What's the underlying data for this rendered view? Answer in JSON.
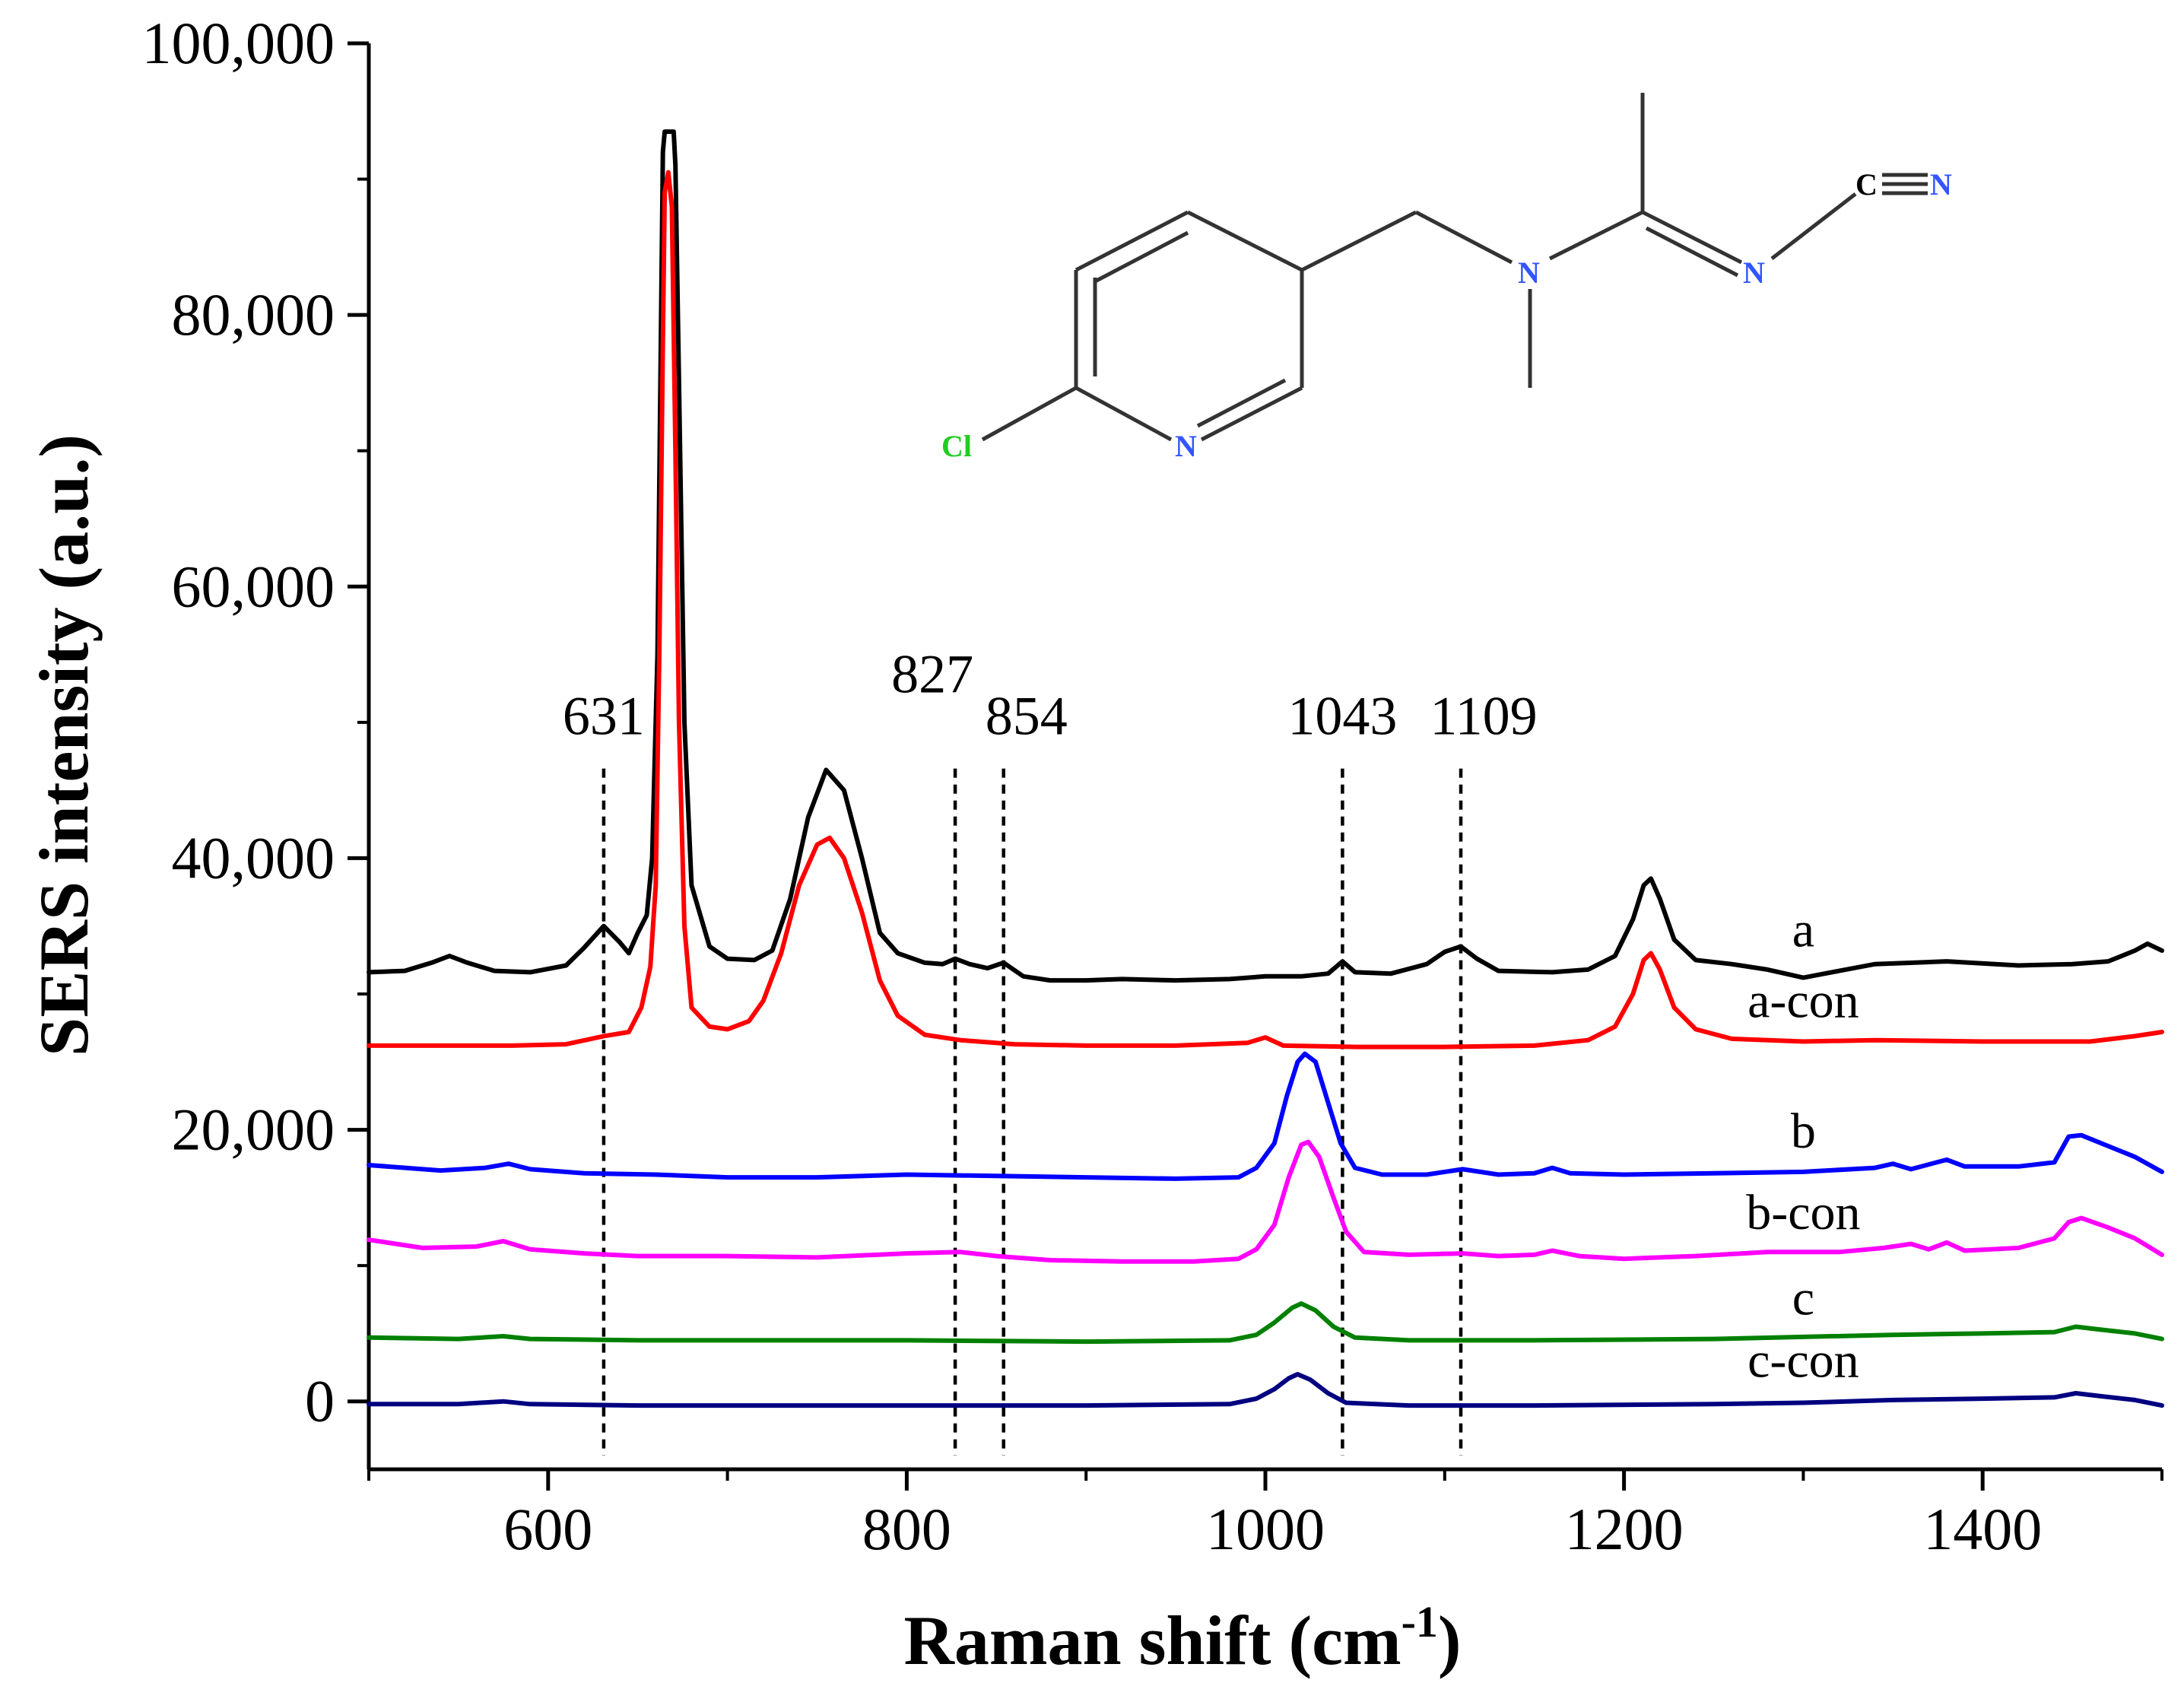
{
  "chart_data": {
    "type": "line",
    "title": "",
    "xlabel": "Raman shift (cm",
    "xlabel_sup": "-1",
    "xlabel_tail": ")",
    "ylabel": "SERS intensity (a.u.)",
    "xlim": [
      500,
      1500
    ],
    "ylim": [
      -5000,
      100000
    ],
    "x_ticks": [
      600,
      800,
      1000,
      1200,
      1400
    ],
    "x_tick_labels": [
      "600",
      "800",
      "1000",
      "1200",
      "1400"
    ],
    "y_ticks": [
      0,
      20000,
      40000,
      60000,
      80000,
      100000
    ],
    "y_tick_labels": [
      "0",
      "20,000",
      "40,000",
      "60,000",
      "80,000",
      "100,000"
    ],
    "annotations": [
      {
        "label": "631",
        "x": 631,
        "y_top": 48000
      },
      {
        "label": "827",
        "x": 827,
        "y_top": 48000
      },
      {
        "label": "854",
        "x": 854,
        "y_top": 48000
      },
      {
        "label": "1043",
        "x": 1043,
        "y_top": 48000
      },
      {
        "label": "1109",
        "x": 1109,
        "y_top": 48000
      }
    ],
    "series": [
      {
        "name": "a",
        "color": "#000000",
        "points": [
          [
            500,
            31600
          ],
          [
            520,
            31700
          ],
          [
            535,
            32300
          ],
          [
            545,
            32800
          ],
          [
            555,
            32300
          ],
          [
            570,
            31700
          ],
          [
            590,
            31600
          ],
          [
            610,
            32100
          ],
          [
            620,
            33400
          ],
          [
            631,
            35000
          ],
          [
            640,
            33800
          ],
          [
            645,
            33000
          ],
          [
            650,
            34500
          ],
          [
            655,
            35800
          ],
          [
            658,
            40000
          ],
          [
            661,
            55000
          ],
          [
            663,
            80000
          ],
          [
            664,
            92000
          ],
          [
            665,
            93500
          ],
          [
            670,
            93500
          ],
          [
            671,
            91000
          ],
          [
            673,
            75000
          ],
          [
            676,
            50000
          ],
          [
            680,
            38000
          ],
          [
            690,
            33500
          ],
          [
            700,
            32600
          ],
          [
            715,
            32500
          ],
          [
            725,
            33200
          ],
          [
            735,
            37000
          ],
          [
            745,
            43000
          ],
          [
            755,
            46500
          ],
          [
            765,
            45000
          ],
          [
            775,
            40000
          ],
          [
            785,
            34500
          ],
          [
            795,
            33000
          ],
          [
            810,
            32300
          ],
          [
            820,
            32200
          ],
          [
            827,
            32600
          ],
          [
            835,
            32200
          ],
          [
            845,
            31900
          ],
          [
            854,
            32300
          ],
          [
            865,
            31300
          ],
          [
            880,
            31000
          ],
          [
            900,
            31000
          ],
          [
            920,
            31100
          ],
          [
            950,
            31000
          ],
          [
            980,
            31100
          ],
          [
            1000,
            31300
          ],
          [
            1020,
            31300
          ],
          [
            1035,
            31500
          ],
          [
            1043,
            32400
          ],
          [
            1050,
            31600
          ],
          [
            1070,
            31500
          ],
          [
            1090,
            32200
          ],
          [
            1100,
            33100
          ],
          [
            1109,
            33500
          ],
          [
            1118,
            32600
          ],
          [
            1130,
            31700
          ],
          [
            1160,
            31600
          ],
          [
            1180,
            31800
          ],
          [
            1195,
            32800
          ],
          [
            1205,
            35500
          ],
          [
            1211,
            38000
          ],
          [
            1215,
            38500
          ],
          [
            1220,
            37000
          ],
          [
            1228,
            34000
          ],
          [
            1240,
            32500
          ],
          [
            1260,
            32200
          ],
          [
            1280,
            31800
          ],
          [
            1300,
            31200
          ],
          [
            1320,
            31700
          ],
          [
            1340,
            32200
          ],
          [
            1380,
            32400
          ],
          [
            1420,
            32100
          ],
          [
            1450,
            32200
          ],
          [
            1470,
            32400
          ],
          [
            1485,
            33200
          ],
          [
            1492,
            33700
          ],
          [
            1500,
            33200
          ]
        ]
      },
      {
        "name": "a-con",
        "color": "#ff0000",
        "points": [
          [
            500,
            26200
          ],
          [
            540,
            26200
          ],
          [
            580,
            26200
          ],
          [
            610,
            26300
          ],
          [
            631,
            26900
          ],
          [
            645,
            27200
          ],
          [
            652,
            29000
          ],
          [
            657,
            32000
          ],
          [
            660,
            38000
          ],
          [
            662,
            55000
          ],
          [
            664,
            78000
          ],
          [
            665,
            89000
          ],
          [
            667,
            90500
          ],
          [
            669,
            88000
          ],
          [
            671,
            70000
          ],
          [
            673,
            50000
          ],
          [
            676,
            35000
          ],
          [
            680,
            29000
          ],
          [
            690,
            27600
          ],
          [
            700,
            27400
          ],
          [
            712,
            28000
          ],
          [
            720,
            29500
          ],
          [
            730,
            33000
          ],
          [
            740,
            38000
          ],
          [
            750,
            41000
          ],
          [
            757,
            41500
          ],
          [
            765,
            40000
          ],
          [
            775,
            36000
          ],
          [
            785,
            31000
          ],
          [
            795,
            28400
          ],
          [
            810,
            27000
          ],
          [
            830,
            26600
          ],
          [
            860,
            26300
          ],
          [
            900,
            26200
          ],
          [
            950,
            26200
          ],
          [
            990,
            26400
          ],
          [
            1000,
            26800
          ],
          [
            1010,
            26200
          ],
          [
            1050,
            26100
          ],
          [
            1100,
            26100
          ],
          [
            1150,
            26200
          ],
          [
            1180,
            26600
          ],
          [
            1195,
            27600
          ],
          [
            1205,
            30000
          ],
          [
            1211,
            32500
          ],
          [
            1215,
            33000
          ],
          [
            1220,
            31800
          ],
          [
            1228,
            29000
          ],
          [
            1240,
            27400
          ],
          [
            1260,
            26700
          ],
          [
            1300,
            26500
          ],
          [
            1340,
            26600
          ],
          [
            1400,
            26500
          ],
          [
            1460,
            26500
          ],
          [
            1485,
            26900
          ],
          [
            1500,
            27200
          ]
        ]
      },
      {
        "name": "b",
        "color": "#0000ff",
        "points": [
          [
            500,
            17400
          ],
          [
            540,
            17000
          ],
          [
            565,
            17200
          ],
          [
            578,
            17500
          ],
          [
            590,
            17100
          ],
          [
            620,
            16800
          ],
          [
            660,
            16700
          ],
          [
            700,
            16500
          ],
          [
            750,
            16500
          ],
          [
            800,
            16700
          ],
          [
            850,
            16600
          ],
          [
            900,
            16500
          ],
          [
            950,
            16400
          ],
          [
            985,
            16500
          ],
          [
            995,
            17200
          ],
          [
            1005,
            19000
          ],
          [
            1012,
            22500
          ],
          [
            1018,
            25000
          ],
          [
            1022,
            25600
          ],
          [
            1028,
            25000
          ],
          [
            1035,
            22000
          ],
          [
            1042,
            19000
          ],
          [
            1050,
            17200
          ],
          [
            1065,
            16700
          ],
          [
            1090,
            16700
          ],
          [
            1110,
            17100
          ],
          [
            1130,
            16700
          ],
          [
            1150,
            16800
          ],
          [
            1160,
            17200
          ],
          [
            1170,
            16800
          ],
          [
            1200,
            16700
          ],
          [
            1250,
            16800
          ],
          [
            1300,
            16900
          ],
          [
            1340,
            17200
          ],
          [
            1350,
            17500
          ],
          [
            1360,
            17100
          ],
          [
            1380,
            17800
          ],
          [
            1390,
            17300
          ],
          [
            1420,
            17300
          ],
          [
            1440,
            17600
          ],
          [
            1448,
            19500
          ],
          [
            1455,
            19600
          ],
          [
            1470,
            18800
          ],
          [
            1485,
            18000
          ],
          [
            1500,
            16900
          ]
        ]
      },
      {
        "name": "b-con",
        "color": "#ff00ff",
        "points": [
          [
            500,
            11900
          ],
          [
            530,
            11300
          ],
          [
            560,
            11400
          ],
          [
            575,
            11800
          ],
          [
            590,
            11200
          ],
          [
            620,
            10900
          ],
          [
            650,
            10700
          ],
          [
            700,
            10700
          ],
          [
            750,
            10600
          ],
          [
            800,
            10900
          ],
          [
            830,
            11000
          ],
          [
            850,
            10700
          ],
          [
            880,
            10400
          ],
          [
            920,
            10300
          ],
          [
            960,
            10300
          ],
          [
            985,
            10500
          ],
          [
            995,
            11200
          ],
          [
            1005,
            13000
          ],
          [
            1013,
            16500
          ],
          [
            1020,
            18900
          ],
          [
            1024,
            19100
          ],
          [
            1030,
            18000
          ],
          [
            1038,
            15000
          ],
          [
            1045,
            12500
          ],
          [
            1055,
            11000
          ],
          [
            1080,
            10800
          ],
          [
            1110,
            10900
          ],
          [
            1130,
            10700
          ],
          [
            1150,
            10800
          ],
          [
            1160,
            11100
          ],
          [
            1175,
            10700
          ],
          [
            1200,
            10500
          ],
          [
            1240,
            10700
          ],
          [
            1280,
            11000
          ],
          [
            1320,
            11000
          ],
          [
            1345,
            11300
          ],
          [
            1360,
            11600
          ],
          [
            1370,
            11200
          ],
          [
            1380,
            11700
          ],
          [
            1390,
            11100
          ],
          [
            1420,
            11300
          ],
          [
            1440,
            12000
          ],
          [
            1448,
            13200
          ],
          [
            1455,
            13500
          ],
          [
            1470,
            12800
          ],
          [
            1485,
            12000
          ],
          [
            1500,
            10800
          ]
        ]
      },
      {
        "name": "c",
        "color": "#008000",
        "points": [
          [
            500,
            4700
          ],
          [
            550,
            4600
          ],
          [
            575,
            4800
          ],
          [
            590,
            4600
          ],
          [
            650,
            4500
          ],
          [
            700,
            4500
          ],
          [
            800,
            4500
          ],
          [
            900,
            4400
          ],
          [
            980,
            4500
          ],
          [
            995,
            4900
          ],
          [
            1005,
            5800
          ],
          [
            1015,
            6900
          ],
          [
            1020,
            7200
          ],
          [
            1028,
            6700
          ],
          [
            1038,
            5500
          ],
          [
            1050,
            4700
          ],
          [
            1080,
            4500
          ],
          [
            1150,
            4500
          ],
          [
            1250,
            4600
          ],
          [
            1350,
            4900
          ],
          [
            1400,
            5000
          ],
          [
            1440,
            5100
          ],
          [
            1452,
            5500
          ],
          [
            1465,
            5300
          ],
          [
            1485,
            5000
          ],
          [
            1500,
            4600
          ]
        ]
      },
      {
        "name": "c-con",
        "color": "#000080",
        "points": [
          [
            500,
            -200
          ],
          [
            550,
            -200
          ],
          [
            575,
            0
          ],
          [
            590,
            -200
          ],
          [
            650,
            -300
          ],
          [
            700,
            -300
          ],
          [
            800,
            -300
          ],
          [
            900,
            -300
          ],
          [
            980,
            -200
          ],
          [
            995,
            200
          ],
          [
            1005,
            900
          ],
          [
            1013,
            1700
          ],
          [
            1018,
            2000
          ],
          [
            1025,
            1600
          ],
          [
            1035,
            600
          ],
          [
            1045,
            -100
          ],
          [
            1080,
            -300
          ],
          [
            1150,
            -300
          ],
          [
            1250,
            -200
          ],
          [
            1300,
            -100
          ],
          [
            1350,
            100
          ],
          [
            1400,
            200
          ],
          [
            1440,
            300
          ],
          [
            1452,
            600
          ],
          [
            1465,
            400
          ],
          [
            1485,
            100
          ],
          [
            1500,
            -300
          ]
        ]
      }
    ]
  },
  "series_labels": [
    {
      "text": "a",
      "x": 1300,
      "y": 33500
    },
    {
      "text": "a-con",
      "x": 1300,
      "y": 28300
    },
    {
      "text": "b",
      "x": 1300,
      "y": 18700
    },
    {
      "text": "b-con",
      "x": 1300,
      "y": 12700
    },
    {
      "text": "c",
      "x": 1300,
      "y": 6400
    },
    {
      "text": "c-con",
      "x": 1300,
      "y": 1800
    }
  ],
  "structure": {
    "atoms": {
      "cl": "Cl",
      "n_ring": "N",
      "n_amine": "N",
      "n_imine": "N",
      "c_nitrile": "C",
      "n_nitrile": "N"
    },
    "colors": {
      "cl": "#22cc22",
      "n": "#3355ff",
      "c": "#000000",
      "bond": "#333333"
    }
  }
}
